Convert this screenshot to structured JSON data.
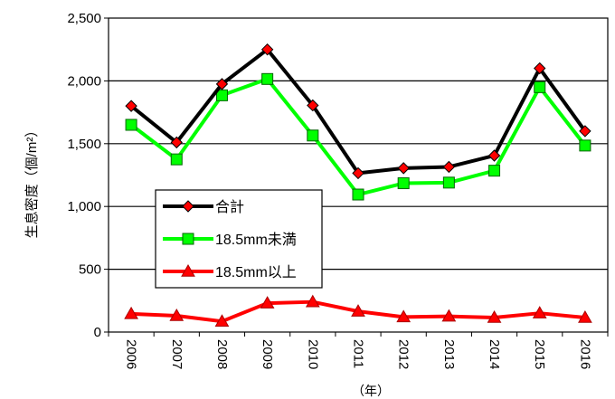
{
  "chart_data": {
    "type": "line",
    "title": "",
    "xlabel": "（年）",
    "ylabel": "生息密度（個/m²）",
    "categories": [
      "2006",
      "2007",
      "2008",
      "2009",
      "2010",
      "2011",
      "2012",
      "2013",
      "2014",
      "2015",
      "2016"
    ],
    "ylim": [
      0,
      2500
    ],
    "yticks": [
      0,
      500,
      1000,
      1500,
      2000,
      2500
    ],
    "ytick_labels": [
      "0",
      "500",
      "1,000",
      "1,500",
      "2,000",
      "2,500"
    ],
    "grid": "horizontal",
    "legend_position": "left-middle",
    "series": [
      {
        "name": "合計",
        "color": "#000000",
        "marker": "diamond",
        "marker_color": "#ff0000",
        "values": [
          1800,
          1510,
          1975,
          2250,
          1805,
          1265,
          1305,
          1315,
          1405,
          2100,
          1600
        ]
      },
      {
        "name": "18.5mm未満",
        "color": "#00ff00",
        "marker": "square",
        "marker_color": "#00ff00",
        "values": [
          1650,
          1375,
          1885,
          2015,
          1565,
          1095,
          1185,
          1190,
          1285,
          1950,
          1485
        ]
      },
      {
        "name": "18.5mm以上",
        "color": "#ff0000",
        "marker": "triangle",
        "marker_color": "#ff0000",
        "values": [
          145,
          130,
          85,
          230,
          240,
          165,
          120,
          125,
          115,
          150,
          115
        ]
      }
    ]
  }
}
